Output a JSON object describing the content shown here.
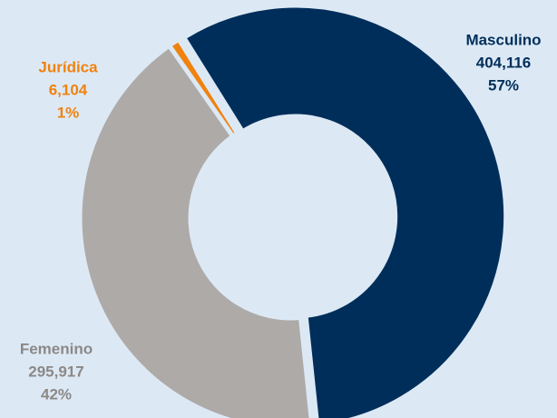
{
  "chart_data": {
    "type": "donut",
    "categories": [
      "Masculino",
      "Femenino",
      "Jurídica"
    ],
    "values": [
      404116,
      295917,
      6104
    ],
    "value_labels": [
      "404,116",
      "295,917",
      "6,104"
    ],
    "percent_labels": [
      "57%",
      "42%",
      "1%"
    ],
    "colors": [
      "#002e5a",
      "#aeaaa8",
      "#f0820f"
    ]
  }
}
